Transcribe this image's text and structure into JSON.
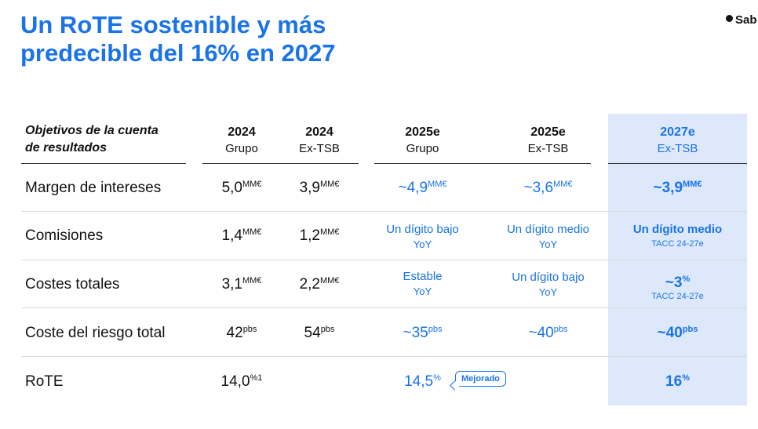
{
  "title": {
    "line1": "Un RoTE sostenible y más",
    "line2": "predecible del 16% en 2027"
  },
  "logo": {
    "text": "Sab"
  },
  "colors": {
    "accent": "#1a73e8",
    "highlight_bg": "#dde9fb"
  },
  "table": {
    "header_label_line1": "Objetivos de la cuenta",
    "header_label_line2": "de resultados",
    "columns": [
      {
        "year": "2024",
        "sub": "Grupo"
      },
      {
        "year": "2024",
        "sub": "Ex-TSB"
      },
      {
        "year": "2025e",
        "sub": "Grupo"
      },
      {
        "year": "2025e",
        "sub": "Ex-TSB"
      },
      {
        "year": "2027e",
        "sub": "Ex-TSB"
      }
    ],
    "rows": {
      "margen": {
        "label": "Margen de intereses",
        "c1": {
          "v": "5,0",
          "u": "MM€"
        },
        "c2": {
          "v": "3,9",
          "u": "MM€"
        },
        "c3": {
          "v": "~4,9",
          "u": "MM€"
        },
        "c4": {
          "v": "~3,6",
          "u": "MM€"
        },
        "c5": {
          "v": "~3,9",
          "u": "MM€"
        }
      },
      "comisiones": {
        "label": "Comisiones",
        "c1": {
          "v": "1,4",
          "u": "MM€"
        },
        "c2": {
          "v": "1,2",
          "u": "MM€"
        },
        "c3": {
          "t": "Un dígito bajo",
          "s": "YoY"
        },
        "c4": {
          "t": "Un dígito medio",
          "s": "YoY"
        },
        "c5": {
          "t": "Un dígito medio",
          "s": "TACC 24-27e"
        }
      },
      "costes": {
        "label": "Costes totales",
        "c1": {
          "v": "3,1",
          "u": "MM€"
        },
        "c2": {
          "v": "2,2",
          "u": "MM€"
        },
        "c3": {
          "t": "Estable",
          "s": "YoY"
        },
        "c4": {
          "t": "Un dígito bajo",
          "s": "YoY"
        },
        "c5": {
          "v": "~3",
          "u": "%",
          "s": "TACC 24-27e"
        }
      },
      "riesgo": {
        "label": "Coste del riesgo total",
        "c1": {
          "v": "42",
          "u": "pbs"
        },
        "c2": {
          "v": "54",
          "u": "pbs"
        },
        "c3": {
          "v": "~35",
          "u": "pbs"
        },
        "c4": {
          "v": "~40",
          "u": "pbs"
        },
        "c5": {
          "v": "~40",
          "u": "pbs"
        }
      },
      "rote": {
        "label": "RoTE",
        "c1": {
          "v": "14,0",
          "u": "%1"
        },
        "c3": {
          "v": "14,5",
          "u": "%"
        },
        "badge": "Mejorado",
        "c5": {
          "v": "16",
          "u": "%"
        }
      }
    }
  }
}
